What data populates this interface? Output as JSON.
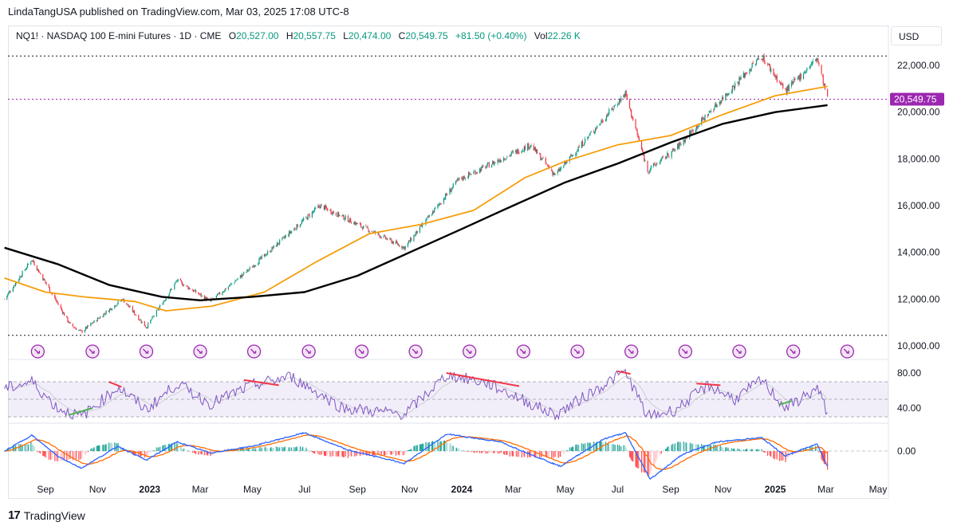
{
  "header": {
    "published": "LindaTangUSA published on TradingView.com, Mar 03, 2025 17:08 UTC-8"
  },
  "legend": {
    "symbol": "NQ1! · NASDAQ 100 E-mini Futures · 1D · CME",
    "o_label": "O",
    "o": "20,527.00",
    "h_label": "H",
    "h": "20,557.75",
    "l_label": "L",
    "l": "20,474.00",
    "c_label": "C",
    "c": "20,549.75",
    "change": "+81.50 (+0.40%)",
    "vol_label": "Vol",
    "vol": "22.26 K"
  },
  "currency": "USD",
  "footer": {
    "brand": "TradingView"
  },
  "colors": {
    "up": "#089981",
    "down": "#f23645",
    "ma_short": "#f59e0b",
    "ma_long": "#000000",
    "rsi": "#7e57c2",
    "macd": "#2962ff",
    "signal": "#ff6d00",
    "price_line": "#9c27b0",
    "arrow": "#9c27b0"
  },
  "chart_data": {
    "type": "line",
    "title": "NQ1! · NASDAQ 100 E-mini Futures · 1D · CME",
    "last_price": "20,549.75",
    "last_value": 20549.75,
    "y_axis": {
      "ticks": [
        22000,
        20000,
        18000,
        16000,
        14000,
        12000,
        10000
      ],
      "tick_labels": [
        "22,000.00",
        "20,000.00",
        "18,000.00",
        "16,000.00",
        "14,000.00",
        "12,000.00",
        "10,000.00"
      ],
      "ylim": [
        9800,
        22600
      ]
    },
    "x_axis": {
      "labels": [
        "Sep",
        "Nov",
        "2023",
        "Mar",
        "May",
        "Jul",
        "Sep",
        "Nov",
        "2024",
        "Mar",
        "May",
        "Jul",
        "Sep",
        "Nov",
        "2025",
        "Mar",
        "May"
      ],
      "bold": [
        "2023",
        "2024",
        "2025"
      ]
    },
    "range_lines": [
      22400,
      10450
    ],
    "price_keypoints": [
      {
        "date": "2022-07-15",
        "value": 12000
      },
      {
        "date": "2022-08-16",
        "value": 13700
      },
      {
        "date": "2022-09-30",
        "value": 10900
      },
      {
        "date": "2022-10-13",
        "value": 10600
      },
      {
        "date": "2022-11-30",
        "value": 12000
      },
      {
        "date": "2022-12-28",
        "value": 10800
      },
      {
        "date": "2023-02-02",
        "value": 12800
      },
      {
        "date": "2023-03-13",
        "value": 11900
      },
      {
        "date": "2023-04-28",
        "value": 13300
      },
      {
        "date": "2023-07-19",
        "value": 16000
      },
      {
        "date": "2023-10-26",
        "value": 14200
      },
      {
        "date": "2023-12-28",
        "value": 17100
      },
      {
        "date": "2024-03-21",
        "value": 18600
      },
      {
        "date": "2024-04-19",
        "value": 17300
      },
      {
        "date": "2024-07-10",
        "value": 20800
      },
      {
        "date": "2024-08-05",
        "value": 17500
      },
      {
        "date": "2024-09-06",
        "value": 18400
      },
      {
        "date": "2024-12-16",
        "value": 22400
      },
      {
        "date": "2025-01-13",
        "value": 20900
      },
      {
        "date": "2025-02-19",
        "value": 22300
      },
      {
        "date": "2025-03-03",
        "value": 20549.75
      }
    ],
    "series": [
      {
        "key": "ma_short",
        "points": [
          {
            "date": "2022-07-15",
            "value": 12900
          },
          {
            "date": "2022-09-01",
            "value": 12300
          },
          {
            "date": "2022-10-15",
            "value": 12100
          },
          {
            "date": "2022-12-15",
            "value": 11900
          },
          {
            "date": "2023-01-20",
            "value": 11500
          },
          {
            "date": "2023-03-15",
            "value": 11700
          },
          {
            "date": "2023-05-15",
            "value": 12300
          },
          {
            "date": "2023-07-15",
            "value": 13600
          },
          {
            "date": "2023-09-15",
            "value": 14800
          },
          {
            "date": "2023-11-15",
            "value": 15200
          },
          {
            "date": "2024-01-15",
            "value": 15800
          },
          {
            "date": "2024-03-15",
            "value": 17200
          },
          {
            "date": "2024-05-01",
            "value": 17900
          },
          {
            "date": "2024-07-01",
            "value": 18600
          },
          {
            "date": "2024-09-01",
            "value": 19000
          },
          {
            "date": "2024-11-01",
            "value": 19900
          },
          {
            "date": "2025-01-01",
            "value": 20700
          },
          {
            "date": "2025-03-03",
            "value": 21100
          }
        ]
      },
      {
        "key": "ma_long",
        "points": [
          {
            "date": "2022-07-15",
            "value": 14200
          },
          {
            "date": "2022-09-15",
            "value": 13500
          },
          {
            "date": "2022-11-15",
            "value": 12600
          },
          {
            "date": "2023-01-15",
            "value": 12100
          },
          {
            "date": "2023-03-01",
            "value": 11950
          },
          {
            "date": "2023-05-01",
            "value": 12100
          },
          {
            "date": "2023-07-01",
            "value": 12300
          },
          {
            "date": "2023-09-01",
            "value": 13000
          },
          {
            "date": "2023-11-01",
            "value": 14000
          },
          {
            "date": "2024-01-01",
            "value": 15000
          },
          {
            "date": "2024-03-01",
            "value": 16000
          },
          {
            "date": "2024-05-01",
            "value": 17000
          },
          {
            "date": "2024-07-01",
            "value": 17800
          },
          {
            "date": "2024-09-01",
            "value": 18700
          },
          {
            "date": "2024-11-01",
            "value": 19500
          },
          {
            "date": "2025-01-01",
            "value": 20000
          },
          {
            "date": "2025-03-03",
            "value": 20300
          }
        ]
      }
    ],
    "event_markers": [
      "2022-08-23",
      "2022-10-26",
      "2022-12-28",
      "2023-03-01",
      "2023-05-03",
      "2023-07-06",
      "2023-09-06",
      "2023-11-08",
      "2024-01-10",
      "2024-03-13",
      "2024-05-15",
      "2024-07-17",
      "2024-09-18",
      "2024-11-20",
      "2025-01-22",
      "2025-03-26"
    ],
    "rsi": {
      "tick_labels": [
        "80.00",
        "40.00"
      ],
      "ticks": [
        80,
        40
      ],
      "band": [
        30,
        70
      ],
      "mid": 50,
      "ylim": [
        25,
        85
      ],
      "keypoints": [
        {
          "date": "2022-07-15",
          "value": 62
        },
        {
          "date": "2022-08-16",
          "value": 70
        },
        {
          "date": "2022-09-15",
          "value": 40
        },
        {
          "date": "2022-10-13",
          "value": 30
        },
        {
          "date": "2022-11-25",
          "value": 64
        },
        {
          "date": "2022-12-28",
          "value": 38
        },
        {
          "date": "2023-02-02",
          "value": 68
        },
        {
          "date": "2023-03-13",
          "value": 45
        },
        {
          "date": "2023-05-01",
          "value": 66
        },
        {
          "date": "2023-06-15",
          "value": 76
        },
        {
          "date": "2023-08-15",
          "value": 40
        },
        {
          "date": "2023-10-26",
          "value": 33
        },
        {
          "date": "2023-12-15",
          "value": 78
        },
        {
          "date": "2024-02-01",
          "value": 68
        },
        {
          "date": "2024-04-19",
          "value": 32
        },
        {
          "date": "2024-07-10",
          "value": 82
        },
        {
          "date": "2024-08-05",
          "value": 30
        },
        {
          "date": "2024-09-06",
          "value": 38
        },
        {
          "date": "2024-10-15",
          "value": 66
        },
        {
          "date": "2024-11-15",
          "value": 50
        },
        {
          "date": "2024-12-16",
          "value": 72
        },
        {
          "date": "2025-01-13",
          "value": 40
        },
        {
          "date": "2025-02-19",
          "value": 62
        },
        {
          "date": "2025-03-03",
          "value": 35
        }
      ],
      "divergences": [
        {
          "from": "2022-09-28",
          "to": "2022-10-26",
          "v1": 32,
          "v2": 40,
          "color": "green"
        },
        {
          "from": "2022-11-14",
          "to": "2022-11-29",
          "v1": 70,
          "v2": 64,
          "color": "red"
        },
        {
          "from": "2023-04-21",
          "to": "2023-06-01",
          "v1": 72,
          "v2": 66,
          "color": "red"
        },
        {
          "from": "2023-12-14",
          "to": "2024-03-08",
          "v1": 80,
          "v2": 65,
          "color": "red"
        },
        {
          "from": "2024-07-01",
          "to": "2024-07-16",
          "v1": 82,
          "v2": 79,
          "color": "red"
        },
        {
          "from": "2024-10-01",
          "to": "2024-10-29",
          "v1": 68,
          "v2": 66,
          "color": "red"
        },
        {
          "from": "2025-01-06",
          "to": "2025-01-20",
          "v1": 44,
          "v2": 48,
          "color": "green"
        }
      ]
    },
    "macd": {
      "tick_labels": [
        "0.00"
      ],
      "zero": 0,
      "ylim": [
        -550,
        350
      ],
      "keypoints": [
        {
          "date": "2022-07-15",
          "value": 0
        },
        {
          "date": "2022-08-16",
          "value": 260
        },
        {
          "date": "2022-09-15",
          "value": -80
        },
        {
          "date": "2022-10-13",
          "value": -280
        },
        {
          "date": "2022-11-25",
          "value": 80
        },
        {
          "date": "2022-12-28",
          "value": -150
        },
        {
          "date": "2023-02-02",
          "value": 150
        },
        {
          "date": "2023-03-13",
          "value": -30
        },
        {
          "date": "2023-05-01",
          "value": 80
        },
        {
          "date": "2023-07-01",
          "value": 300
        },
        {
          "date": "2023-08-20",
          "value": 20
        },
        {
          "date": "2023-10-26",
          "value": -200
        },
        {
          "date": "2023-12-15",
          "value": 280
        },
        {
          "date": "2024-02-15",
          "value": 150
        },
        {
          "date": "2024-04-25",
          "value": -250
        },
        {
          "date": "2024-06-15",
          "value": 200
        },
        {
          "date": "2024-07-10",
          "value": 300
        },
        {
          "date": "2024-08-08",
          "value": -460
        },
        {
          "date": "2024-09-15",
          "value": -50
        },
        {
          "date": "2024-10-25",
          "value": 150
        },
        {
          "date": "2024-12-16",
          "value": 220
        },
        {
          "date": "2025-01-13",
          "value": -80
        },
        {
          "date": "2025-02-19",
          "value": 120
        },
        {
          "date": "2025-03-03",
          "value": -250
        }
      ]
    }
  }
}
